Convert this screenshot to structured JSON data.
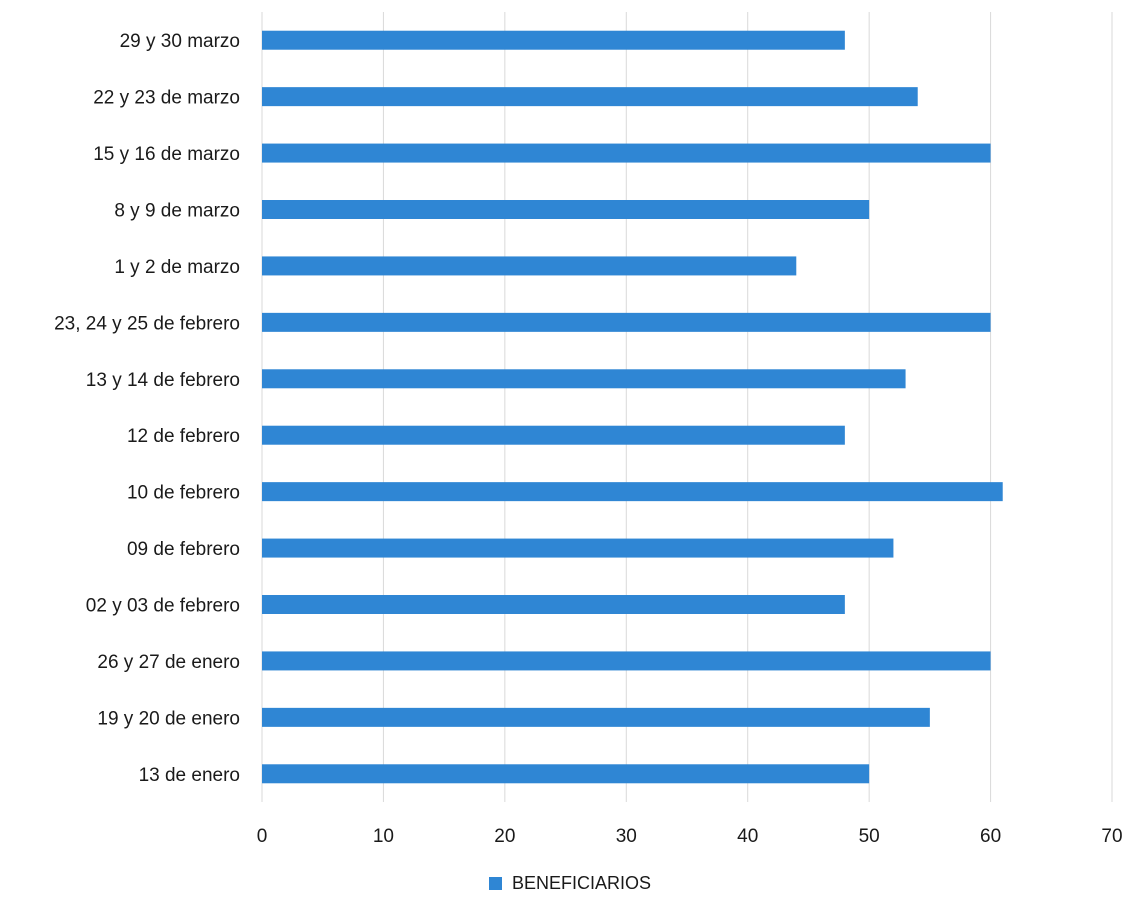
{
  "chart_data": {
    "type": "bar",
    "orientation": "horizontal",
    "categories": [
      "29 y 30 marzo",
      "22 y 23 de marzo",
      "15 y 16 de marzo",
      "8 y 9 de marzo",
      "1 y 2 de marzo",
      "23, 24 y 25 de febrero",
      "13 y 14 de febrero",
      "12 de febrero",
      "10 de febrero",
      "09 de febrero",
      "02 y 03 de febrero",
      "26 y 27 de enero",
      "19 y 20 de enero",
      "13 de enero"
    ],
    "series": [
      {
        "name": "BENEFICIARIOS",
        "color": "#2f86d4",
        "values": [
          48,
          54,
          60,
          50,
          44,
          60,
          53,
          48,
          61,
          52,
          48,
          60,
          55,
          50
        ]
      }
    ],
    "xlim": [
      0,
      70
    ],
    "xticks": [
      "0",
      "10",
      "20",
      "30",
      "40",
      "50",
      "60",
      "70"
    ],
    "grid": "vertical",
    "legend_position": "bottom"
  }
}
